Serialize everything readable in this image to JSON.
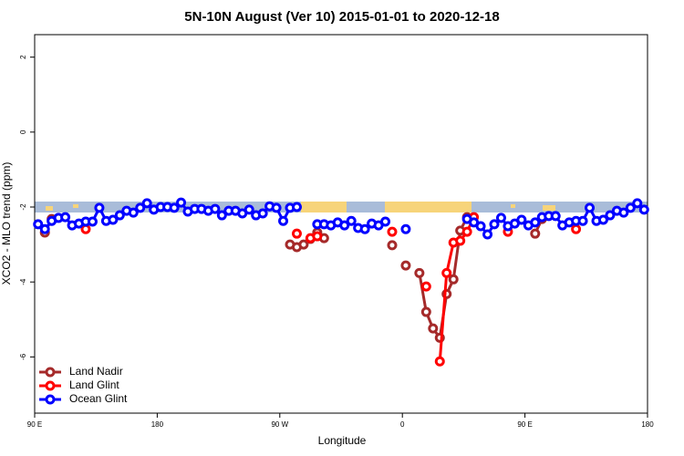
{
  "chart_data": {
    "type": "line",
    "title": "5N-10N August (Ver 10)   2015-01-01 to 2020-12-18",
    "xlabel": "Longitude",
    "ylabel": "XCO2 - MLO trend (ppm)",
    "x": [
      92.5,
      97.5,
      102.5,
      107.5,
      112.5,
      117.5,
      122.5,
      127.5,
      132.5,
      137.5,
      142.5,
      147.5,
      152.5,
      157.5,
      162.5,
      167.5,
      172.5,
      177.5,
      182.5,
      187.5,
      192.5,
      197.5,
      202.5,
      207.5,
      212.5,
      217.5,
      222.5,
      227.5,
      232.5,
      237.5,
      242.5,
      247.5,
      252.5,
      257.5,
      262.5,
      267.5,
      272.5,
      277.5,
      282.5,
      287.5,
      292.5,
      297.5,
      302.5,
      307.5,
      312.5,
      317.5,
      322.5,
      327.5,
      332.5,
      337.5,
      342.5,
      347.5,
      352.5,
      357.5,
      362.5,
      367.5,
      372.5,
      377.5,
      382.5,
      387.5,
      392.5,
      397.5,
      402.5,
      407.5,
      412.5,
      417.5,
      422.5,
      427.5,
      432.5,
      437.5,
      442.5,
      447.5,
      452.5,
      457.5,
      462.5,
      467.5,
      472.5,
      477.5,
      482.5,
      487.5,
      492.5,
      497.5,
      502.5,
      507.5,
      512.5,
      517.5,
      522.5,
      527.5,
      532.5,
      537.5
    ],
    "series": [
      {
        "name": "Land Nadir",
        "color": "#a52a2a",
        "values": [
          null,
          -2.68,
          -2.32,
          null,
          null,
          null,
          null,
          null,
          null,
          null,
          null,
          null,
          null,
          null,
          null,
          null,
          null,
          null,
          null,
          null,
          null,
          null,
          null,
          null,
          null,
          null,
          null,
          null,
          null,
          null,
          null,
          null,
          null,
          null,
          null,
          null,
          null,
          -3.0,
          -3.07,
          -3.0,
          -2.85,
          -2.68,
          -2.83,
          null,
          null,
          null,
          null,
          null,
          null,
          null,
          null,
          null,
          -3.02,
          null,
          -3.56,
          null,
          -3.76,
          -4.8,
          -5.24,
          -5.49,
          -4.32,
          -3.93,
          -2.63,
          -2.27,
          null,
          null,
          null,
          null,
          null,
          null,
          null,
          null,
          null,
          -2.71,
          -2.32,
          null,
          null,
          null,
          null,
          null,
          null,
          null,
          null,
          null,
          null,
          null,
          null,
          null,
          null,
          null
        ]
      },
      {
        "name": "Land Glint",
        "color": "#ff0000",
        "values": [
          null,
          null,
          null,
          null,
          null,
          null,
          null,
          -2.59,
          null,
          null,
          null,
          null,
          null,
          null,
          null,
          null,
          null,
          null,
          null,
          null,
          null,
          null,
          null,
          null,
          null,
          null,
          null,
          null,
          null,
          null,
          null,
          null,
          null,
          null,
          null,
          null,
          null,
          null,
          -2.71,
          null,
          -2.83,
          -2.78,
          null,
          null,
          null,
          null,
          null,
          null,
          null,
          null,
          null,
          null,
          -2.66,
          null,
          null,
          null,
          null,
          -4.12,
          null,
          -6.12,
          -3.76,
          -2.95,
          -2.9,
          -2.66,
          -2.27,
          null,
          null,
          null,
          null,
          -2.66,
          null,
          null,
          null,
          null,
          null,
          null,
          null,
          null,
          null,
          -2.59,
          null,
          null,
          null,
          null,
          null,
          null,
          null,
          null,
          null,
          null
        ]
      },
      {
        "name": "Ocean Glint",
        "color": "#0000ff",
        "values": [
          -2.46,
          -2.59,
          -2.37,
          -2.29,
          -2.27,
          -2.49,
          -2.44,
          -2.39,
          -2.39,
          -2.02,
          -2.37,
          -2.34,
          -2.22,
          -2.1,
          -2.15,
          -2.02,
          -1.9,
          -2.07,
          -2.0,
          -2.0,
          -2.02,
          -1.88,
          -2.12,
          -2.05,
          -2.05,
          -2.1,
          -2.05,
          -2.22,
          -2.1,
          -2.1,
          -2.17,
          -2.07,
          -2.22,
          -2.17,
          -1.98,
          -2.02,
          -2.37,
          -2.02,
          -2.0,
          null,
          null,
          -2.46,
          -2.46,
          -2.49,
          -2.41,
          -2.49,
          -2.37,
          -2.56,
          -2.59,
          -2.44,
          -2.49,
          -2.39,
          null,
          null,
          -2.59,
          null,
          null,
          null,
          null,
          null,
          null,
          null,
          null,
          -2.32,
          -2.41,
          -2.51,
          -2.73,
          -2.46,
          -2.29,
          -2.51,
          -2.44,
          -2.34,
          -2.49,
          -2.41,
          -2.27,
          -2.24,
          -2.24,
          -2.49,
          -2.41,
          -2.37,
          -2.37,
          -2.02,
          -2.37,
          -2.34,
          -2.22,
          -2.1,
          -2.15,
          -2.02,
          -1.9,
          -2.07
        ]
      }
    ],
    "xlim": [
      90,
      540
    ],
    "xticks": [
      90,
      180,
      {
        "value": 270,
        "label": "90 W"
      },
      {
        "value": 360,
        "label": "0"
      },
      {
        "value": 450,
        "label": "90 E"
      },
      {
        "value": 540,
        "label": "180"
      }
    ],
    "xtick_first_label": "90 E",
    "ylim": [
      -7.5,
      2.6
    ],
    "yticks": [
      -6,
      -4,
      -2,
      0,
      2
    ],
    "legend": "bottom-left"
  }
}
